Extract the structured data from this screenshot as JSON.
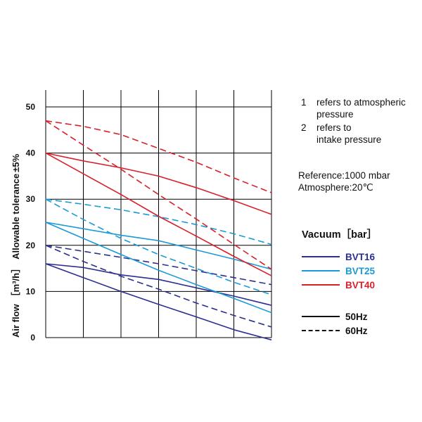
{
  "chart_data": {
    "type": "line",
    "ylabel": "Air flow［m³/h］  Allowable tolerance±5%",
    "ylabel_parts": [
      "Air flow",
      "［m³/h］",
      "Allowable tolerance",
      "±",
      "5%"
    ],
    "ylim": [
      0,
      50
    ],
    "yticks": [
      "0",
      "10",
      "20",
      "30",
      "40",
      "50"
    ],
    "xlim": [
      0,
      6
    ],
    "x_tick_labels": [],
    "grid": true,
    "series": [
      {
        "name": "BVT16 50Hz line 1",
        "model": "BVT16",
        "freq": "50Hz",
        "x": [
          0,
          1,
          2,
          3,
          4,
          5,
          6
        ],
        "values": [
          16,
          15.2,
          13.6,
          12.6,
          10.8,
          9,
          7
        ]
      },
      {
        "name": "BVT16 50Hz line 2",
        "model": "BVT16",
        "freq": "50Hz",
        "x": [
          0,
          1,
          2,
          3,
          4,
          5,
          6
        ],
        "values": [
          16,
          13,
          10,
          7.2,
          4.5,
          1.7,
          -0.5
        ]
      },
      {
        "name": "BVT16 60Hz line 1",
        "model": "BVT16",
        "freq": "60Hz",
        "x": [
          0,
          1,
          2,
          3,
          4,
          5,
          6
        ],
        "values": [
          20,
          18.7,
          17.4,
          16,
          14.5,
          13,
          11.5
        ]
      },
      {
        "name": "BVT16 60Hz line 2",
        "model": "BVT16",
        "freq": "60Hz",
        "x": [
          0,
          1,
          2,
          3,
          4,
          5,
          6
        ],
        "values": [
          20,
          16.5,
          13.3,
          10.5,
          7.5,
          4.8,
          2.3
        ]
      },
      {
        "name": "BVT25 50Hz line 1",
        "model": "BVT25",
        "freq": "50Hz",
        "x": [
          0,
          1,
          2,
          3,
          4,
          5,
          6
        ],
        "values": [
          25,
          23.6,
          22.2,
          21,
          19,
          17,
          14.8
        ]
      },
      {
        "name": "BVT25 50Hz line 2",
        "model": "BVT25",
        "freq": "50Hz",
        "x": [
          0,
          1,
          2,
          3,
          4,
          5,
          6
        ],
        "values": [
          25,
          21.5,
          18,
          14.6,
          11.5,
          8.5,
          5.4
        ]
      },
      {
        "name": "BVT25 60Hz line 1",
        "model": "BVT25",
        "freq": "60Hz",
        "x": [
          0,
          1,
          2,
          3,
          4,
          5,
          6
        ],
        "values": [
          30,
          28.9,
          27.7,
          26.2,
          24.5,
          22.5,
          20.2
        ]
      },
      {
        "name": "BVT25 60Hz line 2",
        "model": "BVT25",
        "freq": "60Hz",
        "x": [
          0,
          1,
          2,
          3,
          4,
          5,
          6
        ],
        "values": [
          30,
          25.6,
          21.5,
          18,
          15,
          12,
          9.3
        ]
      },
      {
        "name": "BVT40 50Hz line 1",
        "model": "BVT40",
        "freq": "50Hz",
        "x": [
          0,
          1,
          2,
          3,
          4,
          5,
          6
        ],
        "values": [
          40,
          38.3,
          36.8,
          35,
          32.5,
          29.7,
          26.7
        ]
      },
      {
        "name": "BVT40 50Hz line 2",
        "model": "BVT40",
        "freq": "50Hz",
        "x": [
          0,
          1,
          2,
          3,
          4,
          5,
          6
        ],
        "values": [
          40,
          35.5,
          31,
          26.3,
          22,
          17.6,
          13.4
        ]
      },
      {
        "name": "BVT40 60Hz line 1",
        "model": "BVT40",
        "freq": "60Hz",
        "x": [
          0,
          1,
          2,
          3,
          4,
          5,
          6
        ],
        "values": [
          47,
          45.8,
          44,
          41,
          38,
          34.6,
          31.4
        ]
      },
      {
        "name": "BVT40 60Hz line 2",
        "model": "BVT40",
        "freq": "60Hz",
        "x": [
          0,
          1,
          2,
          3,
          4,
          5,
          6
        ],
        "values": [
          47,
          41.7,
          36.5,
          31,
          25.7,
          20.2,
          14.8
        ]
      }
    ]
  },
  "notes": [
    {
      "num": "1",
      "line1": "refers to atmospheric",
      "line2": "pressure"
    },
    {
      "num": "2",
      "line1": "refers to",
      "line2": "intake pressure"
    }
  ],
  "reference": {
    "line1": "Reference:1000 mbar",
    "line2": "Atmosphere:20℃"
  },
  "legend": {
    "title": "Vacuum［bar］",
    "models": [
      {
        "label": "BVT16",
        "color": "#2b2f8e"
      },
      {
        "label": "BVT25",
        "color": "#1a9ad6"
      },
      {
        "label": "BVT40",
        "color": "#d8202a"
      }
    ],
    "styles": [
      {
        "label": "50Hz",
        "style": "solid"
      },
      {
        "label": "60Hz",
        "style": "dashed"
      }
    ]
  },
  "colors": {
    "BVT16": "#2b2f8e",
    "BVT25": "#1a9ad6",
    "BVT40": "#d8202a",
    "grid": "#000000"
  }
}
